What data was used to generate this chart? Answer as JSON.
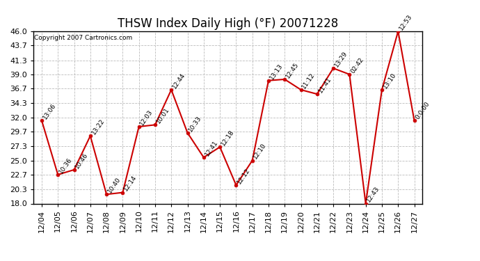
{
  "title": "THSW Index Daily High (°F) 20071228",
  "copyright": "Copyright 2007 Cartronics.com",
  "x_labels": [
    "12/04",
    "12/05",
    "12/06",
    "12/07",
    "12/08",
    "12/09",
    "12/10",
    "12/11",
    "12/12",
    "12/13",
    "12/14",
    "12/15",
    "12/16",
    "12/17",
    "12/18",
    "12/19",
    "12/20",
    "12/21",
    "12/22",
    "12/23",
    "12/24",
    "12/25",
    "12/26",
    "12/27"
  ],
  "y_values": [
    31.5,
    22.7,
    23.5,
    29.0,
    19.5,
    19.8,
    30.5,
    30.8,
    36.5,
    29.5,
    25.5,
    27.2,
    21.0,
    25.0,
    38.0,
    38.2,
    36.5,
    35.8,
    40.0,
    39.0,
    18.0,
    36.5,
    46.0,
    31.5
  ],
  "point_labels": [
    "13:06",
    "10:36",
    "10:46",
    "13:22",
    "10:40",
    "12:14",
    "12:03",
    "10:01",
    "12:44",
    "10:33",
    "12:41",
    "12:18",
    "12:12",
    "12:10",
    "13:13",
    "12:45",
    "11:12",
    "11:41",
    "13:29",
    "02:42",
    "12:43",
    "13:10",
    "12:53",
    "0:0:00"
  ],
  "line_color": "#cc0000",
  "marker_color": "#cc0000",
  "bg_color": "#ffffff",
  "plot_bg_color": "#ffffff",
  "grid_color": "#bbbbbb",
  "ylim": [
    18.0,
    46.0
  ],
  "yticks": [
    18.0,
    20.3,
    22.7,
    25.0,
    27.3,
    29.7,
    32.0,
    34.3,
    36.7,
    39.0,
    41.3,
    43.7,
    46.0
  ],
  "title_fontsize": 12,
  "tick_fontsize": 8,
  "label_fontsize": 6.5
}
